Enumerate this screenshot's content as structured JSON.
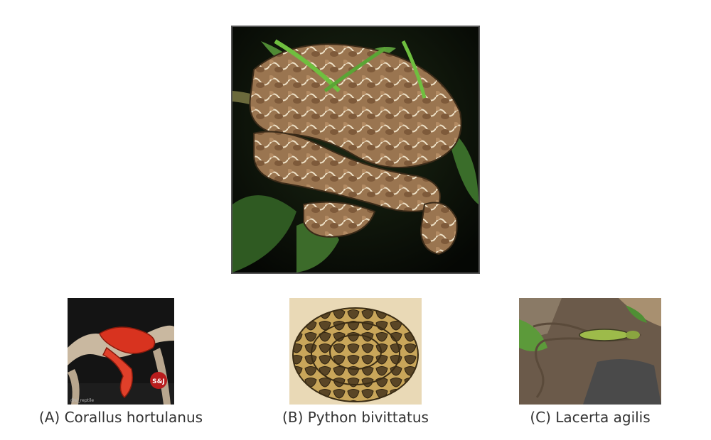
{
  "question_image": {
    "description_name": "coiled-boa-on-branch-photo"
  },
  "options": [
    {
      "letter": "(A)",
      "label": "(A) Corallus hortulanus"
    },
    {
      "letter": "(B)",
      "label": "(B) Python bivittatus"
    },
    {
      "letter": "(C)",
      "label": "(C) Lacerta agilis"
    }
  ],
  "thumbnail_a": {
    "watermark_handle": "@sj_reptile",
    "logo_text": "S&J REPTILES"
  }
}
